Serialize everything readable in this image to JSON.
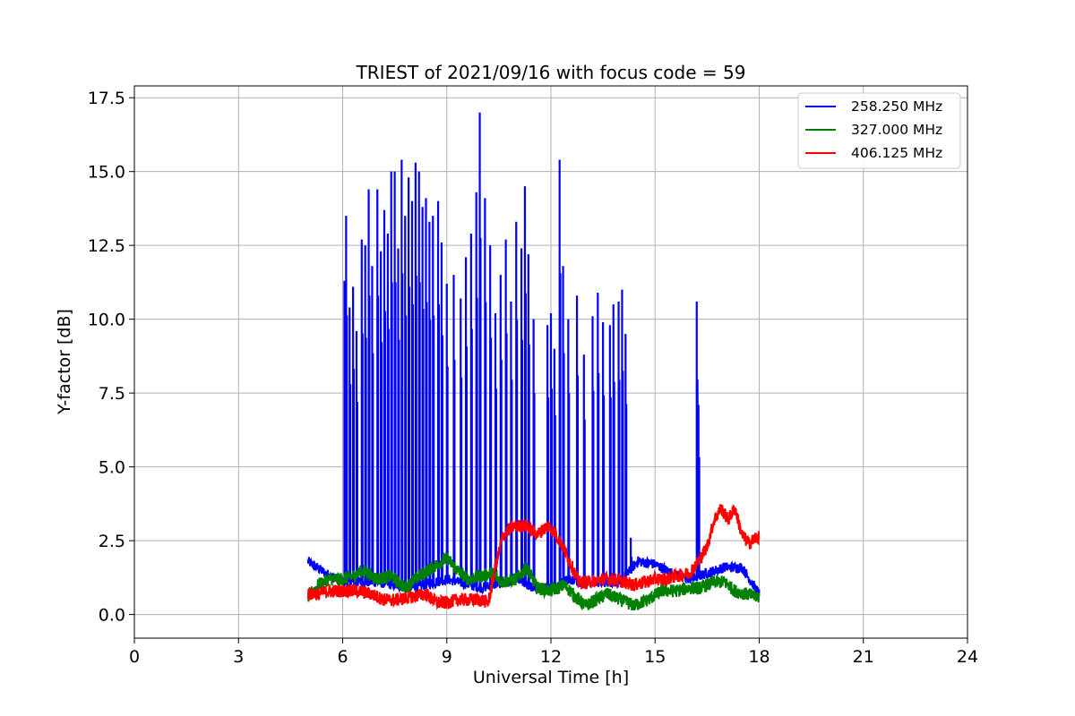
{
  "chart_data": {
    "type": "line",
    "title": "TRIEST of 2021/09/16 with focus code = 59",
    "xlabel": "Universal Time [h]",
    "ylabel": "Y-factor [dB]",
    "xlim": [
      0,
      24
    ],
    "ylim": [
      -0.8,
      17.9
    ],
    "xticks": [
      0,
      3,
      6,
      9,
      12,
      15,
      18,
      21,
      24
    ],
    "yticks": [
      0.0,
      2.5,
      5.0,
      7.5,
      10.0,
      12.5,
      15.0,
      17.5
    ],
    "ytick_labels": [
      "0.0",
      "2.5",
      "5.0",
      "7.5",
      "10.0",
      "12.5",
      "15.0",
      "17.5"
    ],
    "grid": true,
    "legend_position": "top-right",
    "series": [
      {
        "name": "258.250 MHz",
        "color": "#0000ff",
        "baseline": [
          [
            5.0,
            1.8
          ],
          [
            5.5,
            1.4
          ],
          [
            6.0,
            1.1
          ],
          [
            7.0,
            1.1
          ],
          [
            8.0,
            0.9
          ],
          [
            9.0,
            1.2
          ],
          [
            10.0,
            0.9
          ],
          [
            11.0,
            1.2
          ],
          [
            11.5,
            0.9
          ],
          [
            12.0,
            0.9
          ],
          [
            12.5,
            1.2
          ],
          [
            13.0,
            1.1
          ],
          [
            14.0,
            1.1
          ],
          [
            14.5,
            1.8
          ],
          [
            15.0,
            1.7
          ],
          [
            15.5,
            1.4
          ],
          [
            16.0,
            1.2
          ],
          [
            16.5,
            1.4
          ],
          [
            17.0,
            1.6
          ],
          [
            17.5,
            1.6
          ],
          [
            18.0,
            0.7
          ]
        ],
        "spikes": [
          [
            6.05,
            11.3
          ],
          [
            6.1,
            13.5
          ],
          [
            6.2,
            10.4
          ],
          [
            6.3,
            11.1
          ],
          [
            6.4,
            9.6
          ],
          [
            6.55,
            12.7
          ],
          [
            6.65,
            12.5
          ],
          [
            6.75,
            14.4
          ],
          [
            6.85,
            11.8
          ],
          [
            7.0,
            14.4
          ],
          [
            7.1,
            12.3
          ],
          [
            7.2,
            13.7
          ],
          [
            7.3,
            12.9
          ],
          [
            7.4,
            15.0
          ],
          [
            7.5,
            15.0
          ],
          [
            7.6,
            12.4
          ],
          [
            7.7,
            15.4
          ],
          [
            7.8,
            13.5
          ],
          [
            7.9,
            14.8
          ],
          [
            8.0,
            14.0
          ],
          [
            8.1,
            15.3
          ],
          [
            8.2,
            15.0
          ],
          [
            8.3,
            13.8
          ],
          [
            8.4,
            14.1
          ],
          [
            8.5,
            13.3
          ],
          [
            8.6,
            13.5
          ],
          [
            8.75,
            14.0
          ],
          [
            8.85,
            12.6
          ],
          [
            9.0,
            11.2
          ],
          [
            9.2,
            11.5
          ],
          [
            9.4,
            10.7
          ],
          [
            9.55,
            12.1
          ],
          [
            9.7,
            12.9
          ],
          [
            9.85,
            14.3
          ],
          [
            9.95,
            17.0
          ],
          [
            10.1,
            14.1
          ],
          [
            10.25,
            12.5
          ],
          [
            10.4,
            10.2
          ],
          [
            10.55,
            11.5
          ],
          [
            10.7,
            12.7
          ],
          [
            10.85,
            10.6
          ],
          [
            11.0,
            13.3
          ],
          [
            11.15,
            12.4
          ],
          [
            11.25,
            14.5
          ],
          [
            11.35,
            12.2
          ],
          [
            11.5,
            10.0
          ],
          [
            11.9,
            9.8
          ],
          [
            12.0,
            10.2
          ],
          [
            12.1,
            9.0
          ],
          [
            12.25,
            15.4
          ],
          [
            12.35,
            11.8
          ],
          [
            12.5,
            10.0
          ],
          [
            12.75,
            10.8
          ],
          [
            12.95,
            8.8
          ],
          [
            13.2,
            10.1
          ],
          [
            13.35,
            10.9
          ],
          [
            13.5,
            9.9
          ],
          [
            13.7,
            9.8
          ],
          [
            13.8,
            10.5
          ],
          [
            13.95,
            10.6
          ],
          [
            14.05,
            11.0
          ],
          [
            14.15,
            9.5
          ],
          [
            14.3,
            2.6
          ],
          [
            16.2,
            10.6
          ],
          [
            16.25,
            7.1
          ]
        ]
      },
      {
        "name": "327.000 MHz",
        "color": "#008000",
        "points": [
          [
            5.0,
            0.6
          ],
          [
            5.3,
            1.0
          ],
          [
            5.6,
            1.2
          ],
          [
            6.0,
            1.2
          ],
          [
            6.3,
            1.3
          ],
          [
            6.6,
            1.5
          ],
          [
            7.0,
            1.2
          ],
          [
            7.4,
            1.3
          ],
          [
            7.8,
            0.9
          ],
          [
            8.2,
            1.3
          ],
          [
            8.6,
            1.6
          ],
          [
            9.0,
            1.9
          ],
          [
            9.3,
            1.5
          ],
          [
            9.6,
            1.2
          ],
          [
            10.0,
            1.3
          ],
          [
            10.3,
            1.4
          ],
          [
            10.6,
            1.1
          ],
          [
            11.0,
            1.2
          ],
          [
            11.3,
            1.6
          ],
          [
            11.6,
            0.9
          ],
          [
            12.0,
            0.8
          ],
          [
            12.4,
            1.0
          ],
          [
            12.7,
            0.6
          ],
          [
            13.0,
            0.3
          ],
          [
            13.3,
            0.5
          ],
          [
            13.6,
            0.7
          ],
          [
            14.0,
            0.5
          ],
          [
            14.4,
            0.3
          ],
          [
            14.8,
            0.5
          ],
          [
            15.2,
            0.8
          ],
          [
            15.6,
            0.8
          ],
          [
            16.0,
            0.9
          ],
          [
            16.3,
            0.9
          ],
          [
            16.7,
            1.1
          ],
          [
            17.0,
            1.1
          ],
          [
            17.3,
            0.8
          ],
          [
            17.6,
            0.7
          ],
          [
            18.0,
            0.6
          ]
        ]
      },
      {
        "name": "406.125 MHz",
        "color": "#ff0000",
        "points": [
          [
            5.0,
            0.7
          ],
          [
            5.3,
            0.7
          ],
          [
            5.6,
            0.8
          ],
          [
            6.0,
            0.8
          ],
          [
            6.4,
            0.8
          ],
          [
            6.8,
            0.7
          ],
          [
            7.2,
            0.5
          ],
          [
            7.6,
            0.5
          ],
          [
            8.0,
            0.6
          ],
          [
            8.4,
            0.7
          ],
          [
            8.7,
            0.4
          ],
          [
            9.0,
            0.4
          ],
          [
            9.3,
            0.5
          ],
          [
            9.6,
            0.5
          ],
          [
            10.0,
            0.5
          ],
          [
            10.2,
            0.4
          ],
          [
            10.4,
            1.6
          ],
          [
            10.6,
            2.6
          ],
          [
            10.8,
            2.9
          ],
          [
            11.0,
            3.0
          ],
          [
            11.3,
            3.0
          ],
          [
            11.6,
            2.7
          ],
          [
            11.9,
            3.0
          ],
          [
            12.1,
            2.8
          ],
          [
            12.3,
            2.4
          ],
          [
            12.5,
            1.9
          ],
          [
            12.8,
            1.1
          ],
          [
            13.1,
            1.1
          ],
          [
            13.5,
            1.2
          ],
          [
            13.8,
            1.2
          ],
          [
            14.1,
            1.1
          ],
          [
            14.4,
            1.0
          ],
          [
            14.7,
            1.1
          ],
          [
            15.0,
            1.2
          ],
          [
            15.3,
            1.2
          ],
          [
            15.6,
            1.3
          ],
          [
            16.0,
            1.4
          ],
          [
            16.3,
            1.9
          ],
          [
            16.5,
            2.3
          ],
          [
            16.7,
            3.2
          ],
          [
            16.9,
            3.6
          ],
          [
            17.1,
            3.2
          ],
          [
            17.3,
            3.6
          ],
          [
            17.5,
            2.7
          ],
          [
            17.7,
            2.4
          ],
          [
            17.9,
            2.6
          ],
          [
            18.0,
            2.6
          ]
        ]
      }
    ]
  }
}
